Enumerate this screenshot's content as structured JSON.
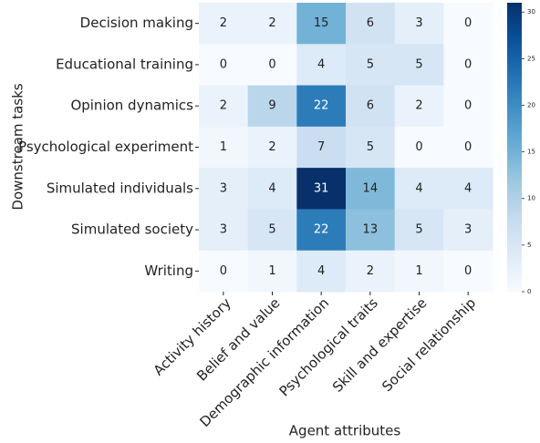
{
  "chart_data": {
    "type": "heatmap",
    "xlabel": "Agent attributes",
    "ylabel": "Downstream tasks",
    "x_categories": [
      "Activity history",
      "Belief and value",
      "Demographic information",
      "Psychological traits",
      "Skill and expertise",
      "Social relationship"
    ],
    "y_categories": [
      "Decision making",
      "Educational training",
      "Opinion dynamics",
      "Psychological experiment",
      "Simulated individuals",
      "Simulated society",
      "Writing"
    ],
    "values": [
      [
        2,
        2,
        15,
        6,
        3,
        0
      ],
      [
        0,
        0,
        4,
        5,
        5,
        0
      ],
      [
        2,
        9,
        22,
        6,
        2,
        0
      ],
      [
        1,
        2,
        7,
        5,
        0,
        0
      ],
      [
        3,
        4,
        31,
        14,
        4,
        4
      ],
      [
        3,
        5,
        22,
        13,
        5,
        3
      ],
      [
        0,
        1,
        4,
        2,
        1,
        0
      ]
    ],
    "zlim": [
      0,
      31
    ],
    "zticks": [
      0,
      5,
      10,
      15,
      20,
      25,
      30
    ],
    "colorscale": [
      "#f7fbff",
      "#deebf7",
      "#c6dbef",
      "#9ecae1",
      "#6baed6",
      "#4292c6",
      "#2171b5",
      "#08519c",
      "#08306b"
    ]
  }
}
